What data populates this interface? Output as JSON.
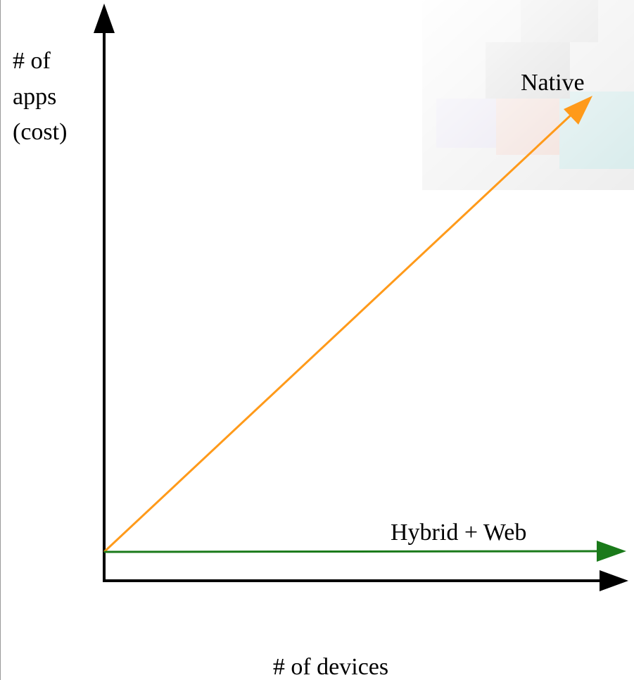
{
  "y_axis_label": [
    "# of",
    "apps",
    "(cost)"
  ],
  "x_axis_label": "# of devices",
  "lines": [
    {
      "label": "Native"
    },
    {
      "label": "Hybrid + Web"
    }
  ]
}
